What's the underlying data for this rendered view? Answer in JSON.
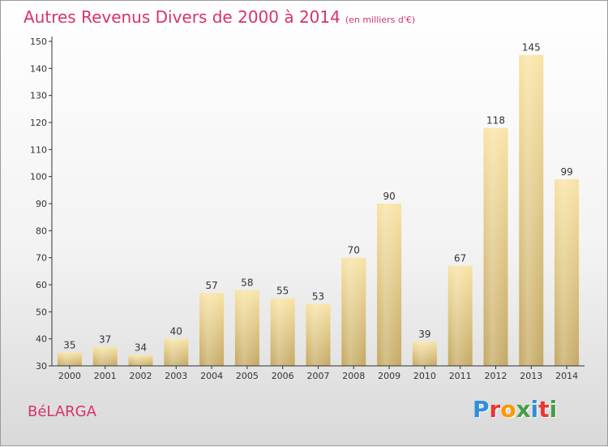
{
  "header": {
    "title": "Autres Revenus Divers de 2000 à 2014",
    "subtitle": "(en milliers d'€)"
  },
  "footer": {
    "place_name": "BéLARGA",
    "logo_text": "Proxiti",
    "logo_colors": [
      "#2f8fd8",
      "#e53935",
      "#ff9800",
      "#43a047",
      "#2f8fd8",
      "#e53935",
      "#43a047"
    ]
  },
  "colors": {
    "title": "#d6336c",
    "bar_light": "#f6de9a",
    "bar_dark": "#c9ad68",
    "axis": "#333333",
    "grid": "#ffffff"
  },
  "chart_data": {
    "type": "bar",
    "categories": [
      "2000",
      "2001",
      "2002",
      "2003",
      "2004",
      "2005",
      "2006",
      "2007",
      "2008",
      "2009",
      "2010",
      "2011",
      "2012",
      "2013",
      "2014"
    ],
    "values": [
      35,
      37,
      34,
      40,
      57,
      58,
      55,
      53,
      70,
      90,
      39,
      67,
      118,
      145,
      99
    ],
    "title": "Autres Revenus Divers de 2000 à 2014",
    "subtitle": "(en milliers d'€)",
    "ylim": [
      30,
      150
    ],
    "yticks": [
      30,
      40,
      50,
      60,
      70,
      80,
      90,
      100,
      110,
      120,
      130,
      140,
      150
    ],
    "grid": false,
    "data_labels": true
  }
}
